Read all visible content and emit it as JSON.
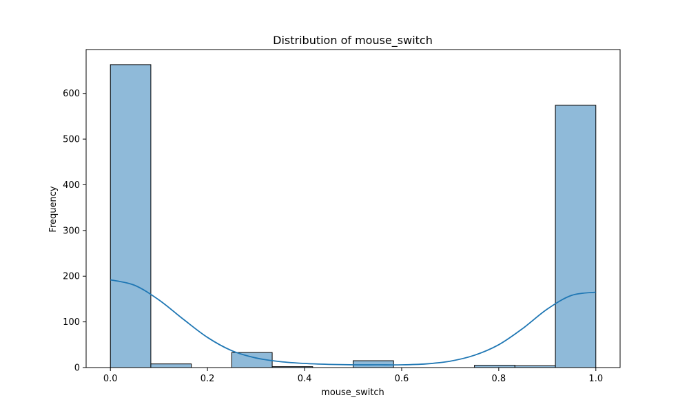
{
  "chart_data": {
    "type": "bar",
    "title": "Distribution of mouse_switch",
    "xlabel": "mouse_switch",
    "ylabel": "Frequency",
    "xlim": [
      -0.05,
      1.05
    ],
    "ylim": [
      0,
      696
    ],
    "x_ticks": [
      0.0,
      0.2,
      0.4,
      0.6,
      0.8,
      1.0
    ],
    "x_tick_labels": [
      "0.0",
      "0.2",
      "0.4",
      "0.6",
      "0.8",
      "1.0"
    ],
    "y_ticks": [
      0,
      100,
      200,
      300,
      400,
      500,
      600
    ],
    "y_tick_labels": [
      "0",
      "100",
      "200",
      "300",
      "400",
      "500",
      "600"
    ],
    "bins": [
      {
        "x0": 0.0,
        "x1": 0.0833,
        "count": 663
      },
      {
        "x0": 0.0833,
        "x1": 0.1667,
        "count": 8
      },
      {
        "x0": 0.1667,
        "x1": 0.25,
        "count": 0
      },
      {
        "x0": 0.25,
        "x1": 0.3333,
        "count": 33
      },
      {
        "x0": 0.3333,
        "x1": 0.4167,
        "count": 2
      },
      {
        "x0": 0.4167,
        "x1": 0.5,
        "count": 0
      },
      {
        "x0": 0.5,
        "x1": 0.5833,
        "count": 15
      },
      {
        "x0": 0.5833,
        "x1": 0.6667,
        "count": 0
      },
      {
        "x0": 0.6667,
        "x1": 0.75,
        "count": 0
      },
      {
        "x0": 0.75,
        "x1": 0.8333,
        "count": 5
      },
      {
        "x0": 0.8333,
        "x1": 0.9167,
        "count": 4
      },
      {
        "x0": 0.9167,
        "x1": 1.0,
        "count": 574
      }
    ],
    "kde": {
      "x": [
        0.0,
        0.05,
        0.1,
        0.15,
        0.2,
        0.25,
        0.3,
        0.35,
        0.4,
        0.45,
        0.5,
        0.55,
        0.6,
        0.65,
        0.7,
        0.75,
        0.8,
        0.85,
        0.9,
        0.95,
        1.0
      ],
      "y": [
        192,
        180,
        148,
        106,
        66,
        37,
        21,
        13,
        9,
        7,
        6,
        6,
        6,
        8,
        14,
        27,
        50,
        86,
        128,
        158,
        165
      ]
    },
    "colors": {
      "bar_fill": "#8fbad9",
      "bar_edge": "#000000",
      "kde_line": "#1f77b4"
    },
    "grid": false,
    "legend": "none"
  }
}
